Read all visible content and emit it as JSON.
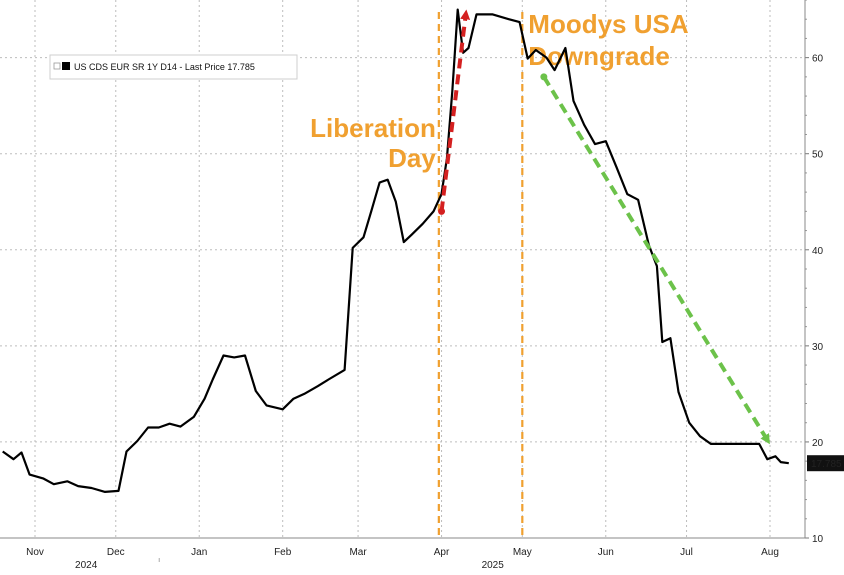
{
  "chart_data": {
    "type": "line",
    "series": [
      {
        "name": "US CDS EUR SR 1Y D14 - Last Price 17.785",
        "color": "#000000",
        "points": [
          [
            "2024-10-20",
            19.0
          ],
          [
            "2024-10-24",
            18.2
          ],
          [
            "2024-10-27",
            18.9
          ],
          [
            "2024-10-30",
            16.6
          ],
          [
            "2024-11-04",
            16.2
          ],
          [
            "2024-11-08",
            15.6
          ],
          [
            "2024-11-13",
            15.9
          ],
          [
            "2024-11-17",
            15.4
          ],
          [
            "2024-11-22",
            15.2
          ],
          [
            "2024-11-27",
            14.8
          ],
          [
            "2024-12-02",
            14.9
          ],
          [
            "2024-12-05",
            19.0
          ],
          [
            "2024-12-09",
            20.1
          ],
          [
            "2024-12-13",
            21.5
          ],
          [
            "2024-12-17",
            21.5
          ],
          [
            "2024-12-21",
            21.9
          ],
          [
            "2024-12-25",
            21.6
          ],
          [
            "2024-12-30",
            22.6
          ],
          [
            "2025-01-03",
            24.5
          ],
          [
            "2025-01-06",
            26.5
          ],
          [
            "2025-01-10",
            29.0
          ],
          [
            "2025-01-14",
            28.8
          ],
          [
            "2025-01-18",
            29.0
          ],
          [
            "2025-01-22",
            25.3
          ],
          [
            "2025-01-26",
            23.8
          ],
          [
            "2025-02-01",
            23.4
          ],
          [
            "2025-02-05",
            24.5
          ],
          [
            "2025-02-09",
            25.0
          ],
          [
            "2025-02-14",
            25.8
          ],
          [
            "2025-02-18",
            26.5
          ],
          [
            "2025-02-24",
            27.5
          ],
          [
            "2025-02-27",
            40.2
          ],
          [
            "2025-03-03",
            41.3
          ],
          [
            "2025-03-06",
            44.1
          ],
          [
            "2025-03-09",
            47.0
          ],
          [
            "2025-03-12",
            47.3
          ],
          [
            "2025-03-15",
            45.0
          ],
          [
            "2025-03-18",
            40.8
          ],
          [
            "2025-03-21",
            41.6
          ],
          [
            "2025-03-25",
            42.7
          ],
          [
            "2025-03-29",
            44.0
          ],
          [
            "2025-04-01",
            45.8
          ],
          [
            "2025-04-03",
            49.5
          ],
          [
            "2025-04-05",
            56.5
          ],
          [
            "2025-04-07",
            65.0
          ],
          [
            "2025-04-09",
            60.5
          ],
          [
            "2025-04-11",
            61.0
          ],
          [
            "2025-04-14",
            64.5
          ],
          [
            "2025-04-20",
            64.5
          ],
          [
            "2025-04-26",
            64.0
          ],
          [
            "2025-04-30",
            63.7
          ],
          [
            "2025-05-03",
            59.9
          ],
          [
            "2025-05-06",
            60.8
          ],
          [
            "2025-05-10",
            60.0
          ],
          [
            "2025-05-13",
            58.7
          ],
          [
            "2025-05-17",
            61.0
          ],
          [
            "2025-05-20",
            55.5
          ],
          [
            "2025-05-24",
            53.0
          ],
          [
            "2025-05-28",
            51.0
          ],
          [
            "2025-06-01",
            51.3
          ],
          [
            "2025-06-05",
            48.6
          ],
          [
            "2025-06-09",
            45.8
          ],
          [
            "2025-06-13",
            45.2
          ],
          [
            "2025-06-17",
            40.5
          ],
          [
            "2025-06-20",
            38.3
          ],
          [
            "2025-06-22",
            30.4
          ],
          [
            "2025-06-25",
            30.8
          ],
          [
            "2025-06-28",
            25.2
          ],
          [
            "2025-07-02",
            22.0
          ],
          [
            "2025-07-06",
            20.6
          ],
          [
            "2025-07-10",
            19.8
          ],
          [
            "2025-07-20",
            19.8
          ],
          [
            "2025-07-28",
            19.8
          ],
          [
            "2025-07-31",
            18.2
          ],
          [
            "2025-08-03",
            18.5
          ],
          [
            "2025-08-05",
            17.9
          ],
          [
            "2025-08-08",
            17.785
          ]
        ]
      }
    ],
    "x_range": [
      "2024-10-19",
      "2025-08-14"
    ],
    "x_ticks": [
      {
        "date": "2024-11-01",
        "label": "Nov"
      },
      {
        "date": "2024-12-01",
        "label": "Dec"
      },
      {
        "date": "2025-01-01",
        "label": "Jan"
      },
      {
        "date": "2025-02-01",
        "label": "Feb"
      },
      {
        "date": "2025-03-01",
        "label": "Mar"
      },
      {
        "date": "2025-04-01",
        "label": "Apr"
      },
      {
        "date": "2025-05-01",
        "label": "May"
      },
      {
        "date": "2025-06-01",
        "label": "Jun"
      },
      {
        "date": "2025-07-01",
        "label": "Jul"
      },
      {
        "date": "2025-08-01",
        "label": "Aug"
      }
    ],
    "x_year_labels": [
      {
        "date": "2024-11-20",
        "label": "2024"
      },
      {
        "date": "2025-04-20",
        "label": "2025"
      }
    ],
    "y_ticks": [
      10,
      20,
      30,
      40,
      50,
      60
    ],
    "ylim": [
      10,
      66
    ],
    "y_axis_side": "right",
    "grid": true,
    "last_value_label": "17.785",
    "legend": {
      "position": "top-left",
      "text": "US CDS EUR SR 1Y D14 - Last Price 17.785"
    },
    "event_lines": [
      {
        "date": "2025-03-31",
        "label_lines": [
          "Liberation",
          "Day"
        ],
        "color": "#f0a030"
      },
      {
        "date": "2025-05-01",
        "label_lines": [
          "Moodys USA",
          "Downgrade"
        ],
        "color": "#f0a030"
      }
    ],
    "trend_arrows": [
      {
        "from": [
          "2025-04-01",
          44.0
        ],
        "to": [
          "2025-04-10",
          64.5
        ],
        "color": "#d42020"
      },
      {
        "from": [
          "2025-05-09",
          58.0
        ],
        "to": [
          "2025-07-31",
          20.2
        ],
        "color": "#6cc24a"
      }
    ]
  }
}
